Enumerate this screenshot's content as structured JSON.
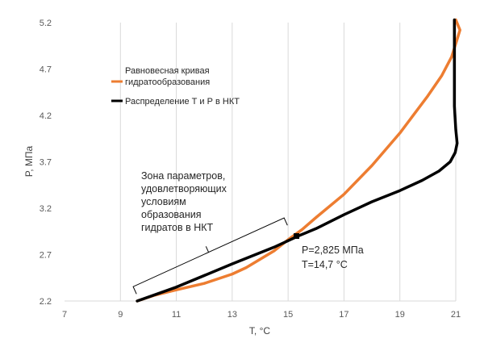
{
  "chart_data": {
    "type": "line",
    "title": "",
    "xlabel": "T, °C",
    "ylabel": "P, МПа",
    "xlim": [
      7,
      21
    ],
    "ylim": [
      2.2,
      5.2
    ],
    "x_ticks": [
      "7",
      "9",
      "11",
      "13",
      "15",
      "17",
      "19",
      "21"
    ],
    "y_ticks": [
      "2.2",
      "2.7",
      "3.2",
      "3.7",
      "4.2",
      "4.7",
      "5.2"
    ],
    "grid": "vertical",
    "legend_position": "left",
    "series": [
      {
        "name": "Равновесная кривая гидратообразования",
        "color": "#ED7D31",
        "points": [
          [
            9.6,
            2.2
          ],
          [
            10.2,
            2.26
          ],
          [
            11.0,
            2.32
          ],
          [
            12.0,
            2.39
          ],
          [
            13.0,
            2.49
          ],
          [
            13.5,
            2.56
          ],
          [
            14.0,
            2.65
          ],
          [
            14.5,
            2.74
          ],
          [
            15.0,
            2.86
          ],
          [
            15.5,
            2.97
          ],
          [
            16.0,
            3.1
          ],
          [
            17.0,
            3.35
          ],
          [
            18.0,
            3.66
          ],
          [
            19.0,
            4.01
          ],
          [
            20.0,
            4.41
          ],
          [
            20.5,
            4.63
          ],
          [
            20.85,
            4.83
          ],
          [
            21.05,
            5.02
          ],
          [
            21.15,
            5.12
          ],
          [
            21.0,
            5.23
          ]
        ]
      },
      {
        "name": "Распределение Т и Р в НКТ",
        "color": "#000000",
        "points": [
          [
            9.6,
            2.2
          ],
          [
            11.0,
            2.35
          ],
          [
            13.0,
            2.6
          ],
          [
            14.5,
            2.78
          ],
          [
            15.0,
            2.85
          ],
          [
            15.4,
            2.905
          ],
          [
            16.0,
            2.98
          ],
          [
            17.0,
            3.13
          ],
          [
            18.0,
            3.27
          ],
          [
            19.0,
            3.39
          ],
          [
            19.8,
            3.5
          ],
          [
            20.4,
            3.6
          ],
          [
            20.8,
            3.7
          ],
          [
            20.98,
            3.8
          ],
          [
            21.05,
            3.9
          ],
          [
            21.0,
            4.05
          ],
          [
            20.95,
            4.3
          ],
          [
            20.95,
            5.23
          ]
        ]
      }
    ],
    "annotations": {
      "zone_lines": [
        "Зона      параметров,",
        "удовлетворяющих",
        "условиям",
        "образования",
        "гидратов в НКТ"
      ],
      "point_label_lines": [
        "Р=2,825 МПа",
        "Т=14,7 °С"
      ],
      "marker": [
        15.3,
        2.9
      ],
      "bracket": [
        [
          9.6,
          2.26
        ],
        [
          15.0,
          3.0
        ]
      ]
    }
  }
}
